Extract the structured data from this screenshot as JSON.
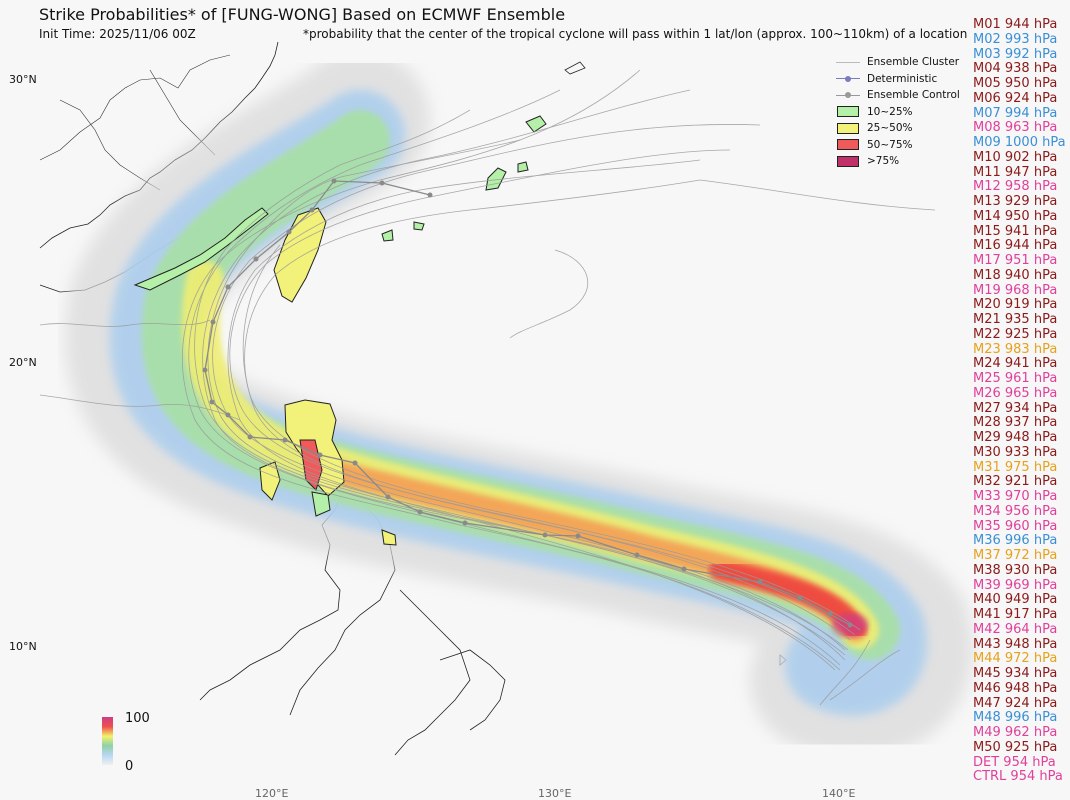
{
  "title": "Strike Probabilities* of [FUNG-WONG] Based on ECMWF Ensemble",
  "init_time": "Init Time: 2025/11/06 00Z",
  "footnote": "*probability that the center of the tropical cyclone will pass within 1 lat/lon (approx. 100~110km) of a location",
  "latitude_labels": [
    "30°N",
    "20°N",
    "10°N"
  ],
  "longitude_labels": [
    "120°E",
    "130°E",
    "140°E"
  ],
  "legend": {
    "cluster": "Ensemble Cluster",
    "deterministic": "Deterministic",
    "control": "Ensemble Control",
    "bins": [
      {
        "label": "10~25%",
        "color": "#b4f0a8"
      },
      {
        "label": "25~50%",
        "color": "#f2f27a"
      },
      {
        "label": "50~75%",
        "color": "#f05a5a"
      },
      {
        "label": ">75%",
        "color": "#c0306a"
      }
    ]
  },
  "colorbar": {
    "max": "100",
    "min": "0"
  },
  "colors": {
    "dark_red": "#8b1a1a",
    "blue": "#3a8fd6",
    "pink": "#e0409a",
    "gold": "#e6a21c"
  },
  "members": [
    {
      "text": "M01 944 hPa",
      "color": "#8b1a1a"
    },
    {
      "text": "M02 993 hPa",
      "color": "#3a8fd6"
    },
    {
      "text": "M03 992 hPa",
      "color": "#3a8fd6"
    },
    {
      "text": "M04 938 hPa",
      "color": "#8b1a1a"
    },
    {
      "text": "M05 950 hPa",
      "color": "#8b1a1a"
    },
    {
      "text": "M06 924 hPa",
      "color": "#8b1a1a"
    },
    {
      "text": "M07 994 hPa",
      "color": "#3a8fd6"
    },
    {
      "text": "M08 963 hPa",
      "color": "#e0409a"
    },
    {
      "text": "M09 1000 hPa",
      "color": "#3a8fd6"
    },
    {
      "text": "M10 902 hPa",
      "color": "#8b1a1a"
    },
    {
      "text": "M11 947 hPa",
      "color": "#8b1a1a"
    },
    {
      "text": "M12 958 hPa",
      "color": "#e0409a"
    },
    {
      "text": "M13 929 hPa",
      "color": "#8b1a1a"
    },
    {
      "text": "M14 950 hPa",
      "color": "#8b1a1a"
    },
    {
      "text": "M15 941 hPa",
      "color": "#8b1a1a"
    },
    {
      "text": "M16 944 hPa",
      "color": "#8b1a1a"
    },
    {
      "text": "M17 951 hPa",
      "color": "#e0409a"
    },
    {
      "text": "M18 940 hPa",
      "color": "#8b1a1a"
    },
    {
      "text": "M19 968 hPa",
      "color": "#e0409a"
    },
    {
      "text": "M20 919 hPa",
      "color": "#8b1a1a"
    },
    {
      "text": "M21 935 hPa",
      "color": "#8b1a1a"
    },
    {
      "text": "M22 925 hPa",
      "color": "#8b1a1a"
    },
    {
      "text": "M23 983 hPa",
      "color": "#e6a21c"
    },
    {
      "text": "M24 941 hPa",
      "color": "#8b1a1a"
    },
    {
      "text": "M25 961 hPa",
      "color": "#e0409a"
    },
    {
      "text": "M26 965 hPa",
      "color": "#e0409a"
    },
    {
      "text": "M27 934 hPa",
      "color": "#8b1a1a"
    },
    {
      "text": "M28 937 hPa",
      "color": "#8b1a1a"
    },
    {
      "text": "M29 948 hPa",
      "color": "#8b1a1a"
    },
    {
      "text": "M30 933 hPa",
      "color": "#8b1a1a"
    },
    {
      "text": "M31 975 hPa",
      "color": "#e6a21c"
    },
    {
      "text": "M32 921 hPa",
      "color": "#8b1a1a"
    },
    {
      "text": "M33 970 hPa",
      "color": "#e0409a"
    },
    {
      "text": "M34 956 hPa",
      "color": "#e0409a"
    },
    {
      "text": "M35 960 hPa",
      "color": "#e0409a"
    },
    {
      "text": "M36 996 hPa",
      "color": "#3a8fd6"
    },
    {
      "text": "M37 972 hPa",
      "color": "#e6a21c"
    },
    {
      "text": "M38 930 hPa",
      "color": "#8b1a1a"
    },
    {
      "text": "M39 969 hPa",
      "color": "#e0409a"
    },
    {
      "text": "M40 949 hPa",
      "color": "#8b1a1a"
    },
    {
      "text": "M41 917 hPa",
      "color": "#8b1a1a"
    },
    {
      "text": "M42 964 hPa",
      "color": "#e0409a"
    },
    {
      "text": "M43 948 hPa",
      "color": "#8b1a1a"
    },
    {
      "text": "M44 972 hPa",
      "color": "#e6a21c"
    },
    {
      "text": "M45 934 hPa",
      "color": "#8b1a1a"
    },
    {
      "text": "M46 948 hPa",
      "color": "#8b1a1a"
    },
    {
      "text": "M47 924 hPa",
      "color": "#8b1a1a"
    },
    {
      "text": "M48 996 hPa",
      "color": "#3a8fd6"
    },
    {
      "text": "M49 962 hPa",
      "color": "#e0409a"
    },
    {
      "text": "M50 925 hPa",
      "color": "#8b1a1a"
    },
    {
      "text": "DET 954 hPa",
      "color": "#e0409a"
    },
    {
      "text": "CTRL 954 hPa",
      "color": "#e0409a"
    }
  ]
}
